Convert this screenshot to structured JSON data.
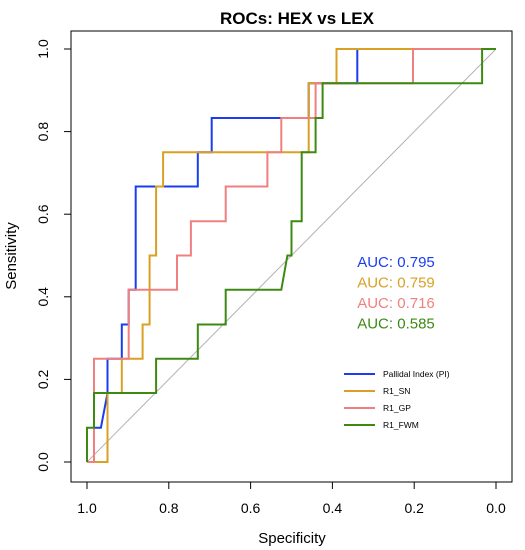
{
  "chart_data": {
    "type": "line",
    "title": "ROCs: HEX vs LEX",
    "xlabel": "Specificity",
    "ylabel": "Sensitivity",
    "xlim": [
      1.0,
      0.0
    ],
    "ylim": [
      0.0,
      1.0
    ],
    "x_ticks": [
      "1.0",
      "0.8",
      "0.6",
      "0.4",
      "0.2",
      "0.0"
    ],
    "y_ticks": [
      "0.0",
      "0.2",
      "0.4",
      "0.6",
      "0.8",
      "1.0"
    ],
    "x_reversed": true,
    "grid": false,
    "reference_line": {
      "from": [
        1.0,
        0.0
      ],
      "to": [
        0.0,
        1.0
      ],
      "color": "#b3b3b3"
    },
    "legend_position": "bottom-right",
    "annotations": [
      {
        "text": "AUC: 0.795",
        "color": "#1a3df0"
      },
      {
        "text": "AUC: 0.759",
        "color": "#d9a023"
      },
      {
        "text": "AUC: 0.716",
        "color": "#f08080"
      },
      {
        "text": "AUC: 0.585",
        "color": "#3c8a12"
      }
    ],
    "series": [
      {
        "name": "Pallidal Index (PI)",
        "color": "#1a3df0",
        "points": [
          [
            1.0,
            0.0
          ],
          [
            0.983,
            0.0
          ],
          [
            0.983,
            0.083
          ],
          [
            0.966,
            0.083
          ],
          [
            0.966,
            0.083
          ],
          [
            0.95,
            0.167
          ],
          [
            0.95,
            0.25
          ],
          [
            0.915,
            0.25
          ],
          [
            0.915,
            0.333
          ],
          [
            0.898,
            0.333
          ],
          [
            0.898,
            0.417
          ],
          [
            0.881,
            0.417
          ],
          [
            0.881,
            0.667
          ],
          [
            0.729,
            0.667
          ],
          [
            0.729,
            0.75
          ],
          [
            0.695,
            0.75
          ],
          [
            0.695,
            0.833
          ],
          [
            0.458,
            0.833
          ],
          [
            0.458,
            0.917
          ],
          [
            0.339,
            0.917
          ],
          [
            0.339,
            1.0
          ],
          [
            0.0,
            1.0
          ]
        ]
      },
      {
        "name": "R1_SN",
        "color": "#d9a023",
        "points": [
          [
            1.0,
            0.0
          ],
          [
            0.95,
            0.0
          ],
          [
            0.95,
            0.167
          ],
          [
            0.915,
            0.167
          ],
          [
            0.915,
            0.25
          ],
          [
            0.864,
            0.25
          ],
          [
            0.864,
            0.333
          ],
          [
            0.847,
            0.333
          ],
          [
            0.847,
            0.5
          ],
          [
            0.831,
            0.5
          ],
          [
            0.831,
            0.667
          ],
          [
            0.814,
            0.667
          ],
          [
            0.814,
            0.75
          ],
          [
            0.458,
            0.75
          ],
          [
            0.458,
            0.917
          ],
          [
            0.441,
            0.917
          ],
          [
            0.441,
            0.917
          ],
          [
            0.39,
            0.917
          ],
          [
            0.39,
            1.0
          ],
          [
            0.0,
            1.0
          ]
        ]
      },
      {
        "name": "R1_GP",
        "color": "#f08080",
        "points": [
          [
            1.0,
            0.0
          ],
          [
            0.983,
            0.0
          ],
          [
            0.983,
            0.25
          ],
          [
            0.898,
            0.25
          ],
          [
            0.898,
            0.417
          ],
          [
            0.78,
            0.417
          ],
          [
            0.78,
            0.5
          ],
          [
            0.746,
            0.5
          ],
          [
            0.746,
            0.583
          ],
          [
            0.661,
            0.583
          ],
          [
            0.661,
            0.667
          ],
          [
            0.559,
            0.667
          ],
          [
            0.559,
            0.75
          ],
          [
            0.525,
            0.75
          ],
          [
            0.525,
            0.833
          ],
          [
            0.441,
            0.833
          ],
          [
            0.441,
            0.917
          ],
          [
            0.203,
            0.917
          ],
          [
            0.203,
            1.0
          ],
          [
            0.0,
            1.0
          ]
        ]
      },
      {
        "name": "R1_FWM",
        "color": "#3c8a12",
        "points": [
          [
            1.0,
            0.0
          ],
          [
            1.0,
            0.083
          ],
          [
            0.983,
            0.083
          ],
          [
            0.983,
            0.167
          ],
          [
            0.831,
            0.167
          ],
          [
            0.831,
            0.25
          ],
          [
            0.729,
            0.25
          ],
          [
            0.729,
            0.333
          ],
          [
            0.661,
            0.333
          ],
          [
            0.661,
            0.417
          ],
          [
            0.525,
            0.417
          ],
          [
            0.51,
            0.5
          ],
          [
            0.5,
            0.5
          ],
          [
            0.5,
            0.583
          ],
          [
            0.475,
            0.583
          ],
          [
            0.475,
            0.75
          ],
          [
            0.441,
            0.75
          ],
          [
            0.441,
            0.833
          ],
          [
            0.424,
            0.833
          ],
          [
            0.424,
            0.917
          ],
          [
            0.034,
            0.917
          ],
          [
            0.034,
            1.0
          ],
          [
            0.0,
            1.0
          ]
        ]
      }
    ]
  }
}
